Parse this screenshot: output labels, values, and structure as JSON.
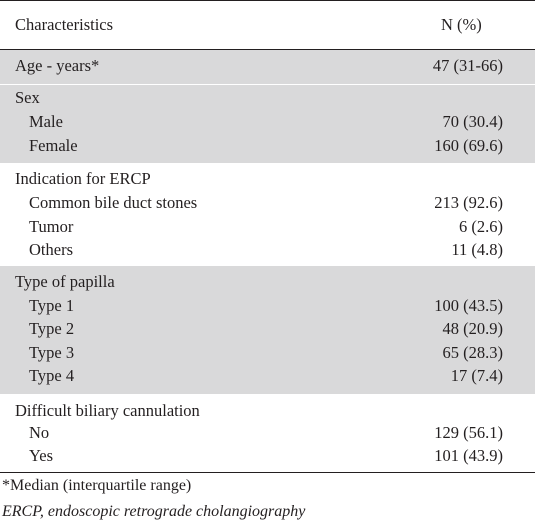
{
  "header": {
    "characteristics": "Characteristics",
    "n_pct": "N (%)"
  },
  "rows": {
    "age": {
      "label": "Age - years*",
      "value": "47 (31-66)"
    },
    "sex": {
      "label": "Sex"
    },
    "male": {
      "label": "Male",
      "value": "70 (30.4)"
    },
    "female": {
      "label": "Female",
      "value": "160 (69.6)"
    },
    "indication": {
      "label": "Indication for ERCP"
    },
    "cbd_stones": {
      "label": "Common bile duct stones",
      "value": "213 (92.6)"
    },
    "tumor": {
      "label": "Tumor",
      "value": "6 (2.6)"
    },
    "others": {
      "label": "Others",
      "value": "11 (4.8)"
    },
    "papilla": {
      "label": "Type of papilla"
    },
    "type1": {
      "label": "Type 1",
      "value": "100 (43.5)"
    },
    "type2": {
      "label": "Type 2",
      "value": "48 (20.9)"
    },
    "type3": {
      "label": "Type 3",
      "value": "65 (28.3)"
    },
    "type4": {
      "label": "Type 4",
      "value": "17 (7.4)"
    },
    "difficult": {
      "label": "Difficult biliary cannulation"
    },
    "no": {
      "label": "No",
      "value": "129 (56.1)"
    },
    "yes": {
      "label": "Yes",
      "value": "101 (43.9)"
    }
  },
  "footnotes": {
    "median": "*Median (interquartile range)",
    "abbrev": "ERCP, endoscopic retrograde cholangiography"
  },
  "colors": {
    "shaded_row": "#d9d9da",
    "text": "#231f20",
    "background": "#ffffff"
  }
}
